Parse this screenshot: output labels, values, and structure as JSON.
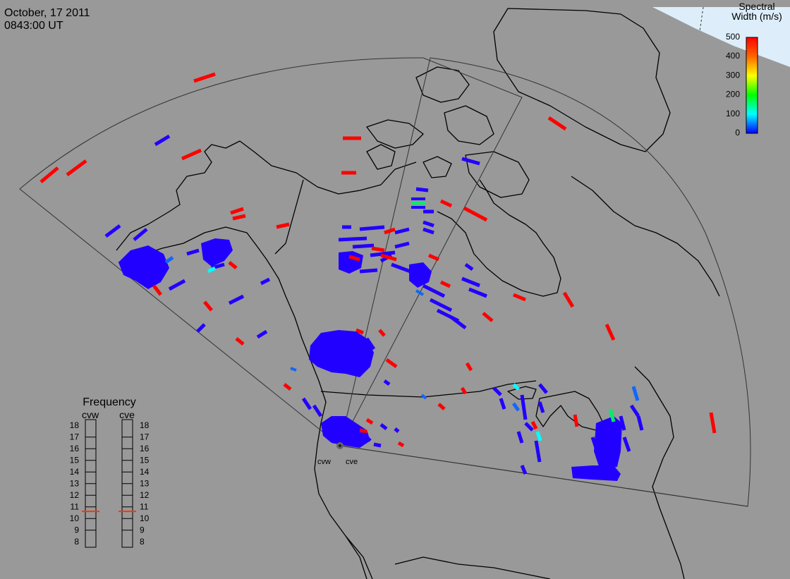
{
  "header": {
    "date": "October, 17 2011",
    "time": "0843:00 UT"
  },
  "colorbar": {
    "title_line1": "Spectral",
    "title_line2": "Width (m/s)",
    "ticks": [
      "500",
      "400",
      "300",
      "200",
      "100",
      "0"
    ],
    "stops": [
      "#ff0000",
      "#ff8000",
      "#ffff00",
      "#00ff00",
      "#00ffff",
      "#0000ff"
    ]
  },
  "frequency_panel": {
    "title": "Frequency",
    "radars": [
      "cvw",
      "cve"
    ],
    "scale": [
      "18",
      "17",
      "16",
      "15",
      "14",
      "13",
      "12",
      "11",
      "10",
      "9",
      "8"
    ],
    "cvw_mhz": 10.6,
    "cve_mhz": 10.6,
    "marker_color": "#ff3300"
  },
  "radar_site": {
    "labels": [
      "cvw",
      "cve"
    ]
  },
  "map": {
    "background": "#999999",
    "polar_cap_color": "#ddeefa",
    "outline_color": "#000000",
    "fov_color": "#333333"
  },
  "echoes": {
    "blue_color": "#2200ff",
    "red_color": "#ff0000",
    "mid_color": "#1166ff",
    "cyan_color": "#00ffff",
    "green_color": "#00ee66"
  }
}
